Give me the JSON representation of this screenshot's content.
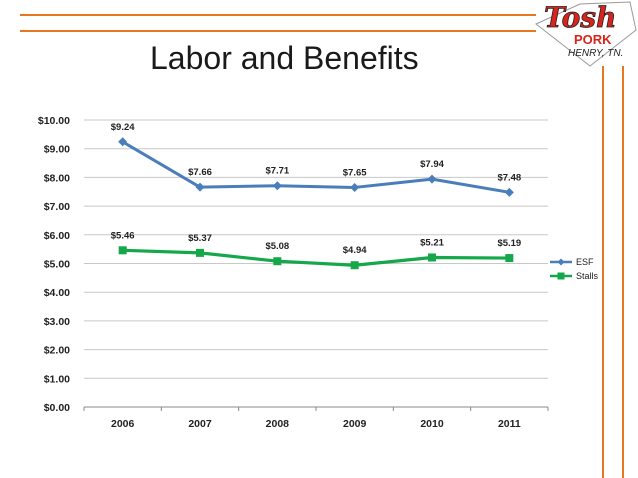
{
  "slide": {
    "title": "Labor and Benefits",
    "accent_color": "#e87722"
  },
  "logo": {
    "line1": "Tosh",
    "line2": "PORK",
    "line3": "HENRY, TN.",
    "colors": {
      "primary": "#d9241c",
      "text": "#222222"
    }
  },
  "chart_data": {
    "type": "line",
    "title": "",
    "xlabel": "",
    "ylabel": "",
    "categories": [
      "2006",
      "2007",
      "2008",
      "2009",
      "2010",
      "2011"
    ],
    "ylim": [
      0,
      10
    ],
    "ytick_step": 1,
    "ytick_labels": [
      "$0.00",
      "$1.00",
      "$2.00",
      "$3.00",
      "$4.00",
      "$5.00",
      "$6.00",
      "$7.00",
      "$8.00",
      "$9.00",
      "$10.00"
    ],
    "grid": true,
    "legend_position": "right",
    "series": [
      {
        "name": "ESF",
        "marker": "diamond",
        "color": "#4a7ebb",
        "values": [
          9.24,
          7.66,
          7.71,
          7.65,
          7.94,
          7.48
        ],
        "labels": [
          "$9.24",
          "$7.66",
          "$7.71",
          "$7.65",
          "$7.94",
          "$7.48"
        ]
      },
      {
        "name": "Stalls",
        "marker": "square",
        "color": "#14a84a",
        "values": [
          5.46,
          5.37,
          5.08,
          4.94,
          5.21,
          5.19
        ],
        "labels": [
          "$5.46",
          "$5.37",
          "$5.08",
          "$4.94",
          "$5.21",
          "$5.19"
        ]
      }
    ]
  }
}
